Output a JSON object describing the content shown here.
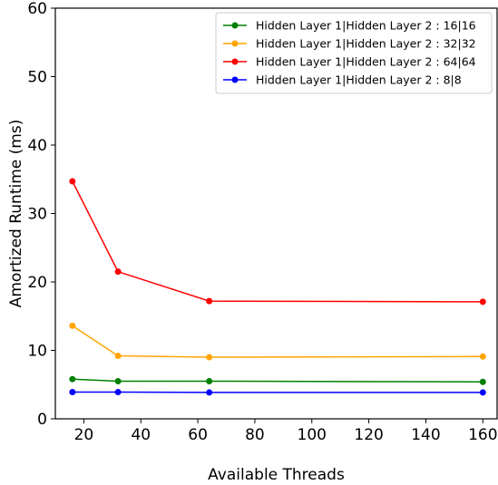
{
  "chart_data": {
    "type": "line",
    "title": "",
    "xlabel": "Available Threads",
    "ylabel": "Amortized Runtime (ms)",
    "xlim": [
      10,
      165
    ],
    "ylim": [
      0,
      60
    ],
    "x_ticks": [
      20,
      40,
      60,
      80,
      100,
      120,
      140,
      160
    ],
    "y_ticks": [
      0,
      10,
      20,
      30,
      40,
      50,
      60
    ],
    "x_tick_labels": [
      "20",
      "40",
      "60",
      "80",
      "100",
      "120",
      "140",
      "160"
    ],
    "y_tick_labels": [
      "0",
      "10",
      "20",
      "30",
      "40",
      "50",
      "60"
    ],
    "grid": false,
    "legend_position": "top-right",
    "x": [
      16,
      32,
      64,
      160
    ],
    "series": [
      {
        "name": "Hidden Layer 1|Hidden Layer 2 : 16|16",
        "color": "#008000",
        "values": [
          5.8,
          5.5,
          5.5,
          5.4
        ]
      },
      {
        "name": "Hidden Layer 1|Hidden Layer 2 : 32|32",
        "color": "#ffa500",
        "values": [
          13.6,
          9.2,
          9.0,
          9.1
        ]
      },
      {
        "name": "Hidden Layer 1|Hidden Layer 2 : 64|64",
        "color": "#ff0000",
        "values": [
          34.7,
          21.5,
          17.2,
          17.1
        ]
      },
      {
        "name": "Hidden Layer 1|Hidden Layer 2 : 8|8",
        "color": "#0000ff",
        "values": [
          3.9,
          3.9,
          3.85,
          3.85
        ]
      }
    ]
  }
}
